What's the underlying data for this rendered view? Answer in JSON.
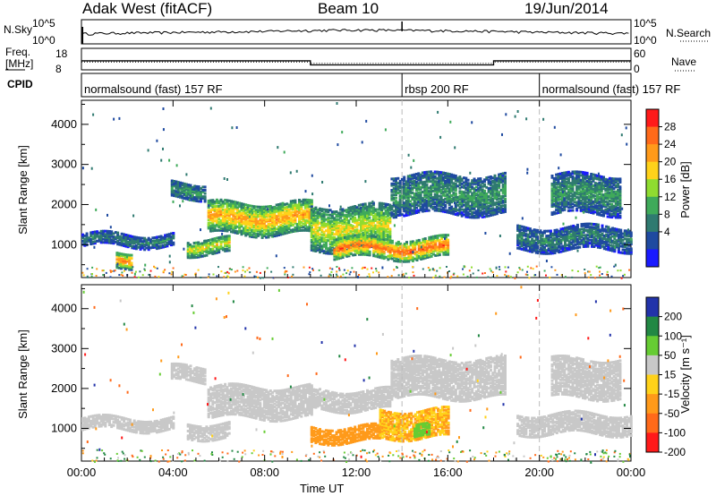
{
  "header": {
    "radar": "Adak West (fitACF)",
    "beam": "Beam 10",
    "date": "19/Jun/2014"
  },
  "noise_panel": {
    "left_label": "N.Sky",
    "left_ticks": [
      "10^5",
      "10^0"
    ],
    "right_ticks": [
      "10^5",
      "10^0"
    ],
    "right_label": "N.Search"
  },
  "freq_panel": {
    "left_label_1": "Freq.",
    "left_label_2": "[MHz]",
    "left_ticks": [
      "18",
      "8"
    ],
    "right_ticks": [
      "60",
      "0"
    ],
    "right_label": "Nave"
  },
  "cpid": {
    "label": "CPID",
    "segments": [
      {
        "text": "normalsound (fast) 157 RF",
        "start_hour": 0
      },
      {
        "text": "rbsp 200 RF",
        "start_hour": 14
      },
      {
        "text": "normalsound (fast) 157 RF",
        "start_hour": 20
      }
    ]
  },
  "power_colorbar": {
    "label": "Power [dB]",
    "ticks": [
      "28",
      "24",
      "20",
      "16",
      "12",
      "8",
      "4"
    ],
    "colors": [
      "#ff1a1a",
      "#ff6a1a",
      "#ff9a1a",
      "#ffd21a",
      "#8fdc30",
      "#3faa5a",
      "#2f7a70",
      "#1f4aa0",
      "#1a1aff"
    ]
  },
  "velocity_colorbar": {
    "label": "Velocity [m s⁻¹]",
    "ticks": [
      "200",
      "100",
      "50",
      "15",
      "-15",
      "-50",
      "-100",
      "-200"
    ],
    "colors": [
      "#2233aa",
      "#228844",
      "#66cc33",
      "#c8c8c8",
      "#ffd21a",
      "#ff9a1a",
      "#ff6a1a",
      "#ff1a1a"
    ]
  },
  "x_axis": {
    "label": "Time UT",
    "ticks": [
      "00:00",
      "04:00",
      "08:00",
      "12:00",
      "16:00",
      "20:00",
      "00:00"
    ]
  },
  "chart_data": [
    {
      "type": "line",
      "name": "noise",
      "x_range_hours": [
        0,
        24
      ],
      "series": [
        {
          "name": "N.Sky",
          "x": [
            0,
            4,
            8,
            12,
            16,
            20,
            24
          ],
          "y": [
            100,
            180,
            300,
            600,
            400,
            200,
            120
          ]
        }
      ],
      "ylim": [
        1,
        100000
      ],
      "log_y": true
    },
    {
      "type": "line",
      "name": "freq",
      "series": [
        {
          "name": "Freq",
          "x": [
            0,
            10,
            10,
            18,
            18,
            24
          ],
          "y": [
            12.2,
            12.2,
            10.3,
            10.3,
            12.2,
            12.2
          ]
        },
        {
          "name": "Nave",
          "x": [
            0,
            10,
            10,
            18,
            18,
            24
          ],
          "y": [
            22,
            22,
            18,
            18,
            22,
            22
          ]
        }
      ],
      "ylim_left": [
        8,
        18
      ],
      "ylim_right": [
        0,
        60
      ]
    },
    {
      "type": "heatmap",
      "name": "power",
      "xlabel": "Time UT",
      "ylabel": "Slant Range [km]",
      "xlim": [
        0,
        24
      ],
      "ylim": [
        180,
        4600
      ],
      "y_ticks": [
        1000,
        2000,
        3000,
        4000
      ],
      "bands": [
        {
          "x0": 0.0,
          "x1": 4.0,
          "y0": 1000,
          "y1": 1300,
          "level": 8
        },
        {
          "x0": 1.5,
          "x1": 2.2,
          "y0": 500,
          "y1": 900,
          "level": 24
        },
        {
          "x0": 3.9,
          "x1": 5.4,
          "y0": 2200,
          "y1": 2600,
          "level": 10
        },
        {
          "x0": 4.6,
          "x1": 6.4,
          "y0": 800,
          "y1": 1200,
          "level": 18
        },
        {
          "x0": 5.5,
          "x1": 10.0,
          "y0": 1300,
          "y1": 2100,
          "level": 22
        },
        {
          "x0": 10.0,
          "x1": 13.5,
          "y0": 900,
          "y1": 2000,
          "level": 18
        },
        {
          "x0": 11.0,
          "x1": 16.0,
          "y0": 700,
          "y1": 1200,
          "level": 26
        },
        {
          "x0": 13.5,
          "x1": 18.5,
          "y0": 1800,
          "y1": 2800,
          "level": 10
        },
        {
          "x0": 19.0,
          "x1": 24.0,
          "y0": 900,
          "y1": 1500,
          "level": 8
        },
        {
          "x0": 20.5,
          "x1": 23.5,
          "y0": 1800,
          "y1": 2800,
          "level": 10
        }
      ]
    },
    {
      "type": "heatmap",
      "name": "velocity",
      "xlabel": "Time UT",
      "ylabel": "Slant Range [km]",
      "xlim": [
        0,
        24
      ],
      "ylim": [
        180,
        4600
      ],
      "y_ticks": [
        1000,
        2000,
        3000,
        4000
      ],
      "bands": [
        {
          "x0": 0.0,
          "x1": 4.0,
          "y0": 1000,
          "y1": 1300,
          "v": 0
        },
        {
          "x0": 3.9,
          "x1": 5.4,
          "y0": 2200,
          "y1": 2600,
          "v": 0
        },
        {
          "x0": 4.6,
          "x1": 6.4,
          "y0": 800,
          "y1": 1200,
          "v": 0
        },
        {
          "x0": 5.5,
          "x1": 10.0,
          "y0": 1300,
          "y1": 2100,
          "v": 0
        },
        {
          "x0": 10.0,
          "x1": 13.5,
          "y0": 1500,
          "y1": 2000,
          "v": 0
        },
        {
          "x0": 10.0,
          "x1": 13.0,
          "y0": 700,
          "y1": 1100,
          "v": -60
        },
        {
          "x0": 13.0,
          "x1": 16.0,
          "y0": 800,
          "y1": 1500,
          "v": -30
        },
        {
          "x0": 14.5,
          "x1": 15.2,
          "y0": 800,
          "y1": 1100,
          "v": 60
        },
        {
          "x0": 13.5,
          "x1": 18.5,
          "y0": 1800,
          "y1": 2800,
          "v": 0
        },
        {
          "x0": 19.0,
          "x1": 24.0,
          "y0": 900,
          "y1": 1400,
          "v": 0
        },
        {
          "x0": 20.5,
          "x1": 23.5,
          "y0": 1800,
          "y1": 2800,
          "v": 0
        }
      ]
    }
  ]
}
